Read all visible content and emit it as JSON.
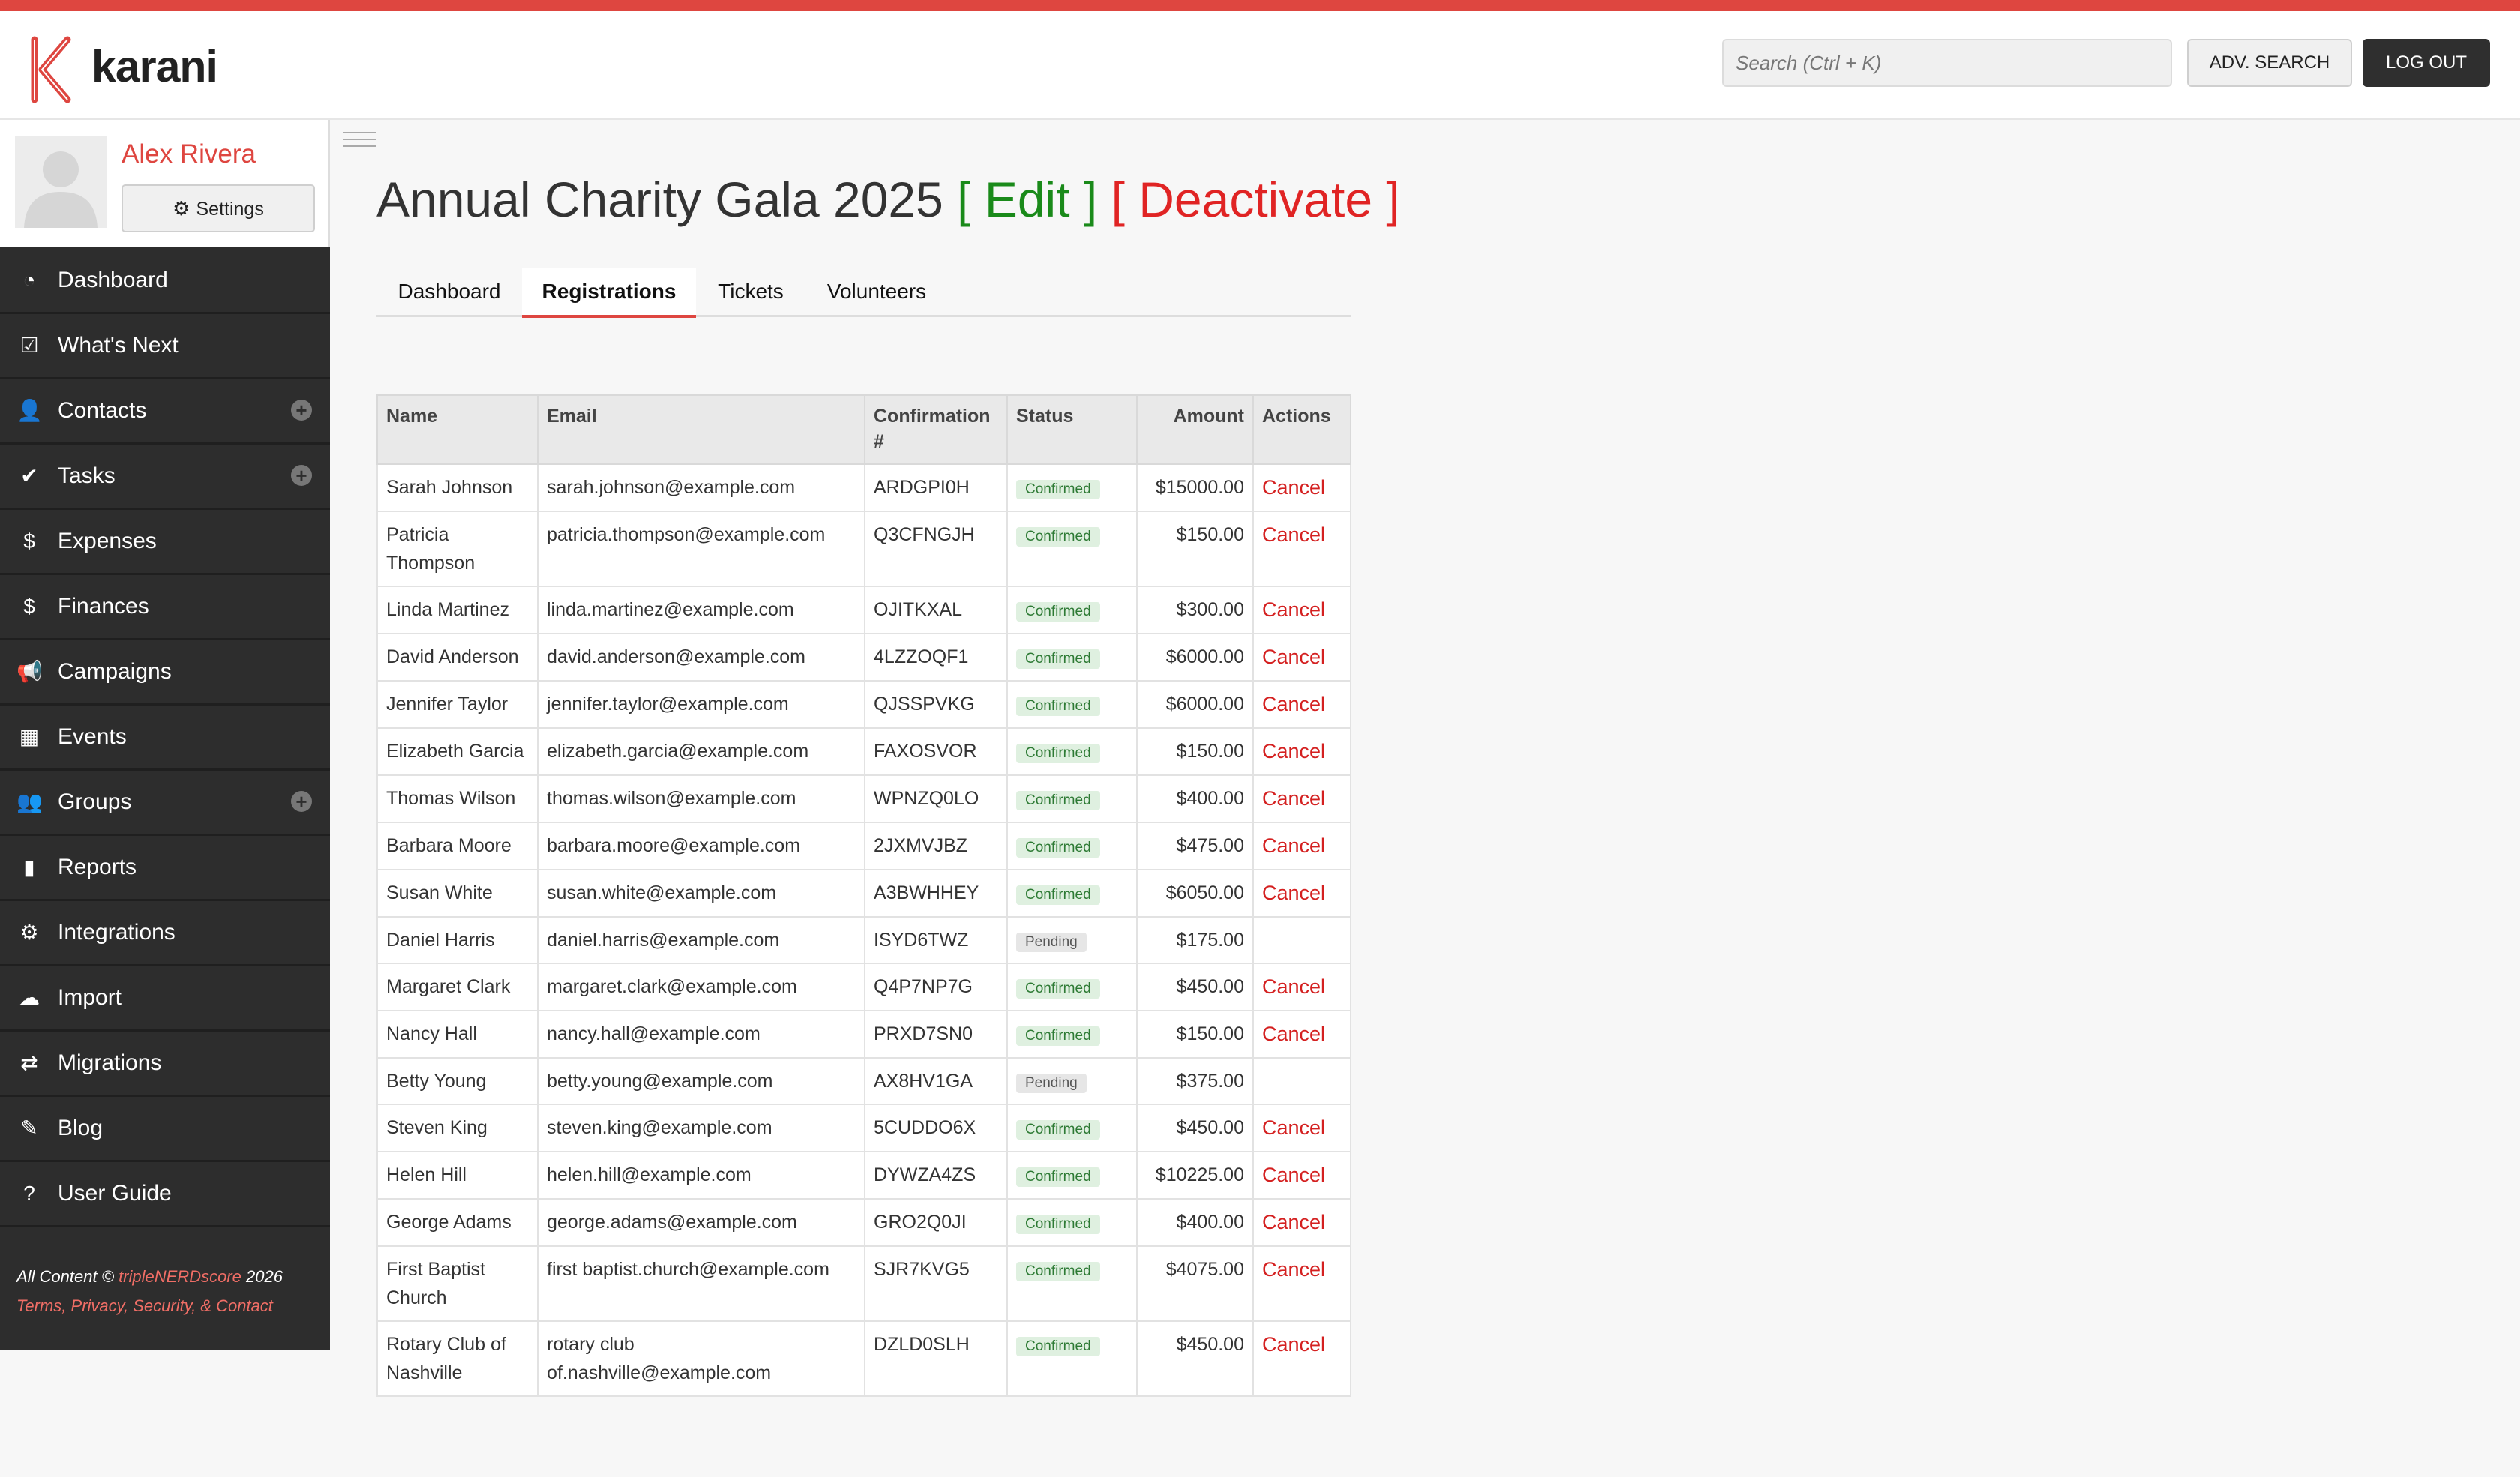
{
  "header": {
    "logo_text": "karani",
    "search_placeholder": "Search (Ctrl + K)",
    "adv_search_label": "ADV. SEARCH",
    "logout_label": "LOG OUT"
  },
  "user": {
    "name": "Alex Rivera",
    "settings_label": "Settings"
  },
  "sidebar": {
    "items": [
      {
        "label": "Dashboard",
        "icon": "dashboard-icon"
      },
      {
        "label": "What's Next",
        "icon": "check-square-icon"
      },
      {
        "label": "Contacts",
        "icon": "user-icon"
      },
      {
        "label": "Tasks",
        "icon": "check-icon"
      },
      {
        "label": "Expenses",
        "icon": "dollar-icon"
      },
      {
        "label": "Finances",
        "icon": "dollar-icon"
      },
      {
        "label": "Campaigns",
        "icon": "megaphone-icon"
      },
      {
        "label": "Events",
        "icon": "calendar-icon"
      },
      {
        "label": "Groups",
        "icon": "group-icon"
      },
      {
        "label": "Reports",
        "icon": "bar-chart-icon"
      },
      {
        "label": "Integrations",
        "icon": "gear-icon"
      },
      {
        "label": "Import",
        "icon": "cloud-upload-icon"
      },
      {
        "label": "Migrations",
        "icon": "exchange-icon"
      },
      {
        "label": "Blog",
        "icon": "pencil-icon"
      },
      {
        "label": "User Guide",
        "icon": "question-icon"
      }
    ],
    "footer": {
      "prefix": "All Content © ",
      "brand": "tripleNERDscore",
      "year": " 2026",
      "links": "Terms, Privacy, Security, & Contact"
    }
  },
  "page": {
    "title": "Annual Charity Gala 2025",
    "edit_label": "[ Edit ]",
    "deactivate_label": "[ Deactivate ]"
  },
  "tabs": [
    {
      "label": "Dashboard",
      "active": false
    },
    {
      "label": "Registrations",
      "active": true
    },
    {
      "label": "Tickets",
      "active": false
    },
    {
      "label": "Volunteers",
      "active": false
    }
  ],
  "table": {
    "headers": [
      "Name",
      "Email",
      "Confirmation #",
      "Status",
      "Amount",
      "Actions"
    ],
    "cancel_label": "Cancel",
    "rows": [
      {
        "name": "Sarah Johnson",
        "email": "sarah.johnson@example.com",
        "conf": "ARDGPI0H",
        "status": "Confirmed",
        "amount": "$15000.00"
      },
      {
        "name": "Patricia Thompson",
        "email": "patricia.thompson@example.com",
        "conf": "Q3CFNGJH",
        "status": "Confirmed",
        "amount": "$150.00"
      },
      {
        "name": "Linda Martinez",
        "email": "linda.martinez@example.com",
        "conf": "OJITKXAL",
        "status": "Confirmed",
        "amount": "$300.00"
      },
      {
        "name": "David Anderson",
        "email": "david.anderson@example.com",
        "conf": "4LZZOQF1",
        "status": "Confirmed",
        "amount": "$6000.00"
      },
      {
        "name": "Jennifer Taylor",
        "email": "jennifer.taylor@example.com",
        "conf": "QJSSPVKG",
        "status": "Confirmed",
        "amount": "$6000.00"
      },
      {
        "name": "Elizabeth Garcia",
        "email": "elizabeth.garcia@example.com",
        "conf": "FAXOSVOR",
        "status": "Confirmed",
        "amount": "$150.00"
      },
      {
        "name": "Thomas Wilson",
        "email": "thomas.wilson@example.com",
        "conf": "WPNZQ0LO",
        "status": "Confirmed",
        "amount": "$400.00"
      },
      {
        "name": "Barbara Moore",
        "email": "barbara.moore@example.com",
        "conf": "2JXMVJBZ",
        "status": "Confirmed",
        "amount": "$475.00"
      },
      {
        "name": "Susan White",
        "email": "susan.white@example.com",
        "conf": "A3BWHHEY",
        "status": "Confirmed",
        "amount": "$6050.00"
      },
      {
        "name": "Daniel Harris",
        "email": "daniel.harris@example.com",
        "conf": "ISYD6TWZ",
        "status": "Pending",
        "amount": "$175.00"
      },
      {
        "name": "Margaret Clark",
        "email": "margaret.clark@example.com",
        "conf": "Q4P7NP7G",
        "status": "Confirmed",
        "amount": "$450.00"
      },
      {
        "name": "Nancy Hall",
        "email": "nancy.hall@example.com",
        "conf": "PRXD7SN0",
        "status": "Confirmed",
        "amount": "$150.00"
      },
      {
        "name": "Betty Young",
        "email": "betty.young@example.com",
        "conf": "AX8HV1GA",
        "status": "Pending",
        "amount": "$375.00"
      },
      {
        "name": "Steven King",
        "email": "steven.king@example.com",
        "conf": "5CUDDO6X",
        "status": "Confirmed",
        "amount": "$450.00"
      },
      {
        "name": "Helen Hill",
        "email": "helen.hill@example.com",
        "conf": "DYWZA4ZS",
        "status": "Confirmed",
        "amount": "$10225.00"
      },
      {
        "name": "George Adams",
        "email": "george.adams@example.com",
        "conf": "GRO2Q0JI",
        "status": "Confirmed",
        "amount": "$400.00"
      },
      {
        "name": "First Baptist Church",
        "email": "first baptist.church@example.com",
        "conf": "SJR7KVG5",
        "status": "Confirmed",
        "amount": "$4075.00"
      },
      {
        "name": "Rotary Club of Nashville",
        "email": "rotary club of.nashville@example.com",
        "conf": "DZLD0SLH",
        "status": "Confirmed",
        "amount": "$450.00"
      }
    ]
  }
}
